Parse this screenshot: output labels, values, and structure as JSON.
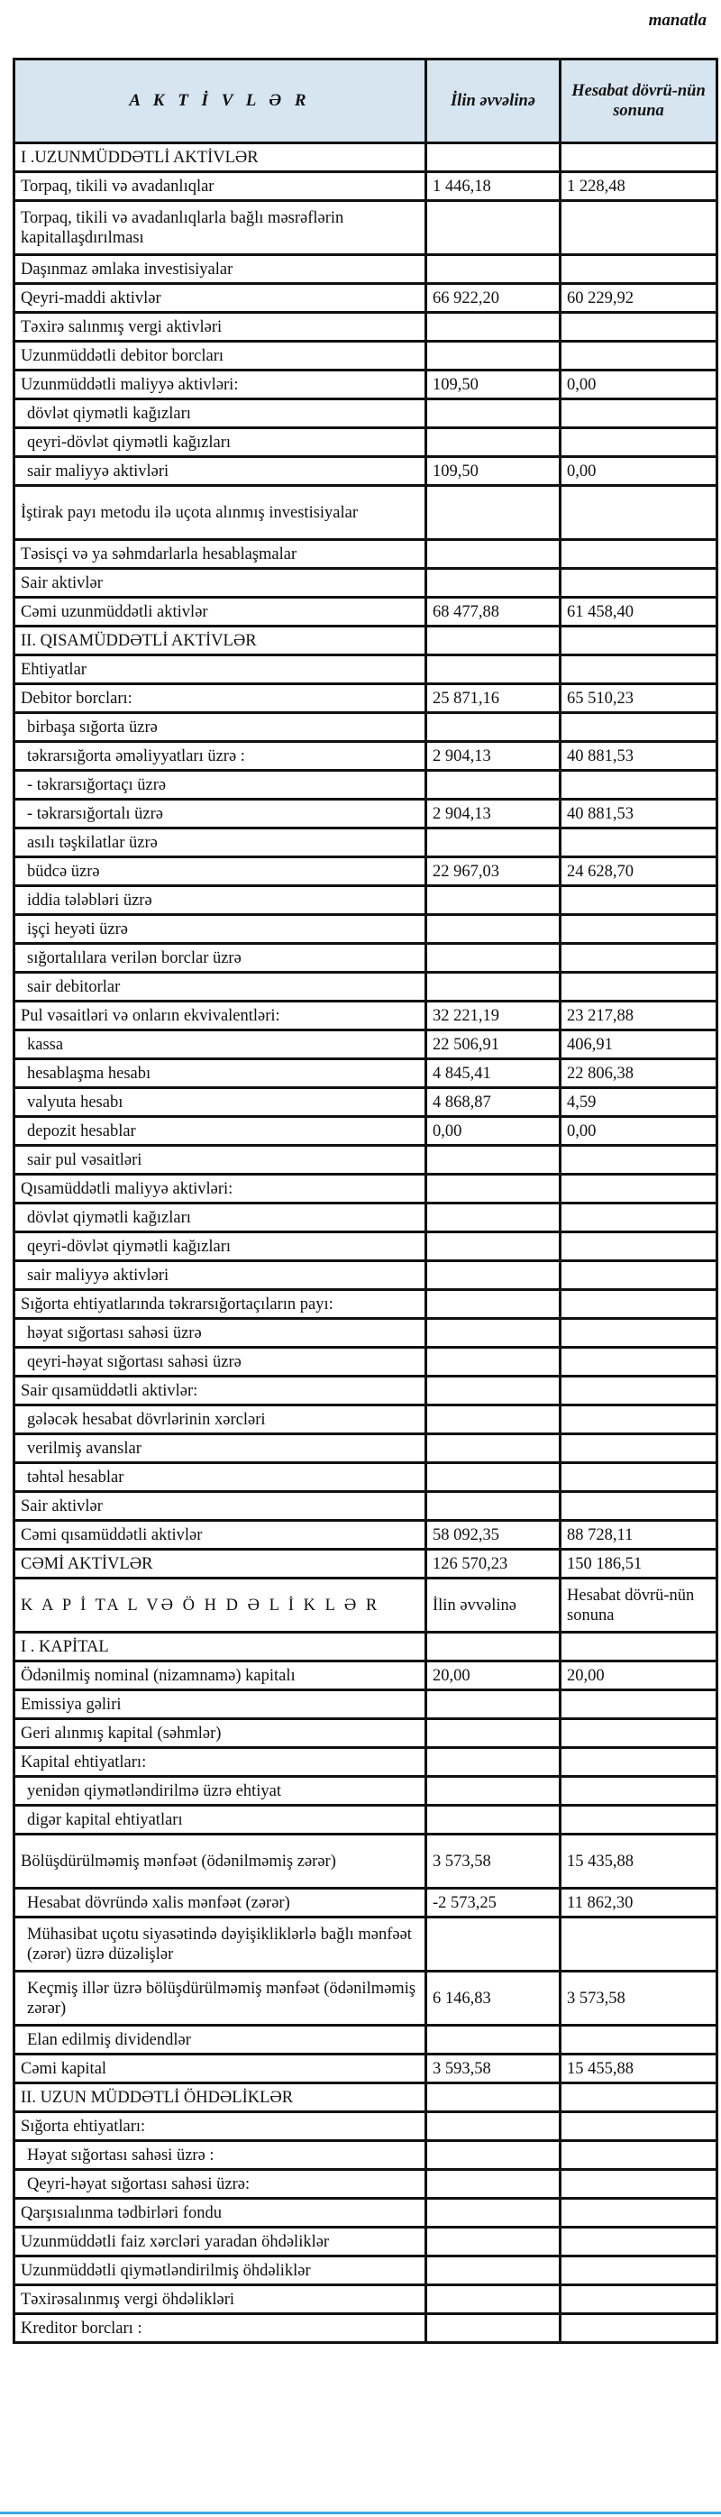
{
  "unit_label": "manatla",
  "header": {
    "title": "A K T İ V L Ə R",
    "col_start": "İlin əvvəlinə",
    "col_end": "Hesabat dövrü-nün sonuna"
  },
  "rows": [
    {
      "label": "I .UZUNMÜDDƏTLİ AKTİVLƏR",
      "start": "",
      "end": ""
    },
    {
      "label": "Torpaq, tikili və avadanlıqlar",
      "start": "1 446,18",
      "end": "1 228,48"
    },
    {
      "label": "Torpaq, tikili və avadanlıqlarla bağlı məsrəflərin kapitallaşdırılması",
      "start": "",
      "end": "",
      "double": true
    },
    {
      "label": "Daşınmaz əmlaka investisiyalar",
      "start": "",
      "end": ""
    },
    {
      "label": "Qeyri-maddi aktivlər",
      "start": "66 922,20",
      "end": "60 229,92"
    },
    {
      "label": "Təxirə salınmış vergi aktivləri",
      "start": "",
      "end": ""
    },
    {
      "label": "Uzunmüddətli debitor borcları",
      "start": "",
      "end": ""
    },
    {
      "label": "Uzunmüddətli maliyyə aktivləri:",
      "start": "109,50",
      "end": "0,00"
    },
    {
      "label": "dövlət qiymətli kağızları",
      "start": "",
      "end": "",
      "indent": true
    },
    {
      "label": "qeyri-dövlət qiymətli kağızları",
      "start": "",
      "end": "",
      "indent": true
    },
    {
      "label": "sair maliyyə aktivləri",
      "start": "109,50",
      "end": "0,00",
      "indent": true
    },
    {
      "label": "İştirak payı metodu ilə uçota alınmış investisiyalar",
      "start": "",
      "end": "",
      "double": true
    },
    {
      "label": "Təsisçi və ya səhmdarlarla hesablaşmalar",
      "start": "",
      "end": ""
    },
    {
      "label": "Sair aktivlər",
      "start": "",
      "end": ""
    },
    {
      "label": "Cəmi uzunmüddətli aktivlər",
      "start": "68 477,88",
      "end": "61 458,40"
    },
    {
      "label": "II. QISAMÜDDƏTLİ AKTİVLƏR",
      "start": "",
      "end": ""
    },
    {
      "label": "Ehtiyatlar",
      "start": "",
      "end": ""
    },
    {
      "label": "Debitor borcları:",
      "start": "25 871,16",
      "end": "65 510,23"
    },
    {
      "label": "birbaşa sığorta üzrə",
      "start": "",
      "end": "",
      "indent": true
    },
    {
      "label": "təkrarsığorta əməliyyatları üzrə :",
      "start": "2 904,13",
      "end": "40 881,53",
      "indent": true
    },
    {
      "label": "- təkrarsığortaçı üzrə",
      "start": "",
      "end": "",
      "indent": true
    },
    {
      "label": "- təkrarsığortalı üzrə",
      "start": "2 904,13",
      "end": "40 881,53",
      "indent": true
    },
    {
      "label": "asılı təşkilatlar üzrə",
      "start": "",
      "end": "",
      "indent": true
    },
    {
      "label": "büdcə üzrə",
      "start": "22 967,03",
      "end": "24 628,70",
      "indent": true
    },
    {
      "label": "iddia tələbləri üzrə",
      "start": "",
      "end": "",
      "indent": true
    },
    {
      "label": "işçi heyəti üzrə",
      "start": "",
      "end": "",
      "indent": true
    },
    {
      "label": "sığortalılara verilən borclar üzrə",
      "start": "",
      "end": "",
      "indent": true
    },
    {
      "label": "sair debitorlar",
      "start": "",
      "end": "",
      "indent": true
    },
    {
      "label": "Pul vəsaitləri və onların ekvivalentləri:",
      "start": "32 221,19",
      "end": "23 217,88"
    },
    {
      "label": "kassa",
      "start": "22 506,91",
      "end": "406,91",
      "indent": true
    },
    {
      "label": "hesablaşma hesabı",
      "start": "4 845,41",
      "end": "22 806,38",
      "indent": true
    },
    {
      "label": "valyuta hesabı",
      "start": "4 868,87",
      "end": "4,59",
      "indent": true
    },
    {
      "label": "depozit hesablar",
      "start": "0,00",
      "end": "0,00",
      "indent": true
    },
    {
      "label": "sair pul vəsaitləri",
      "start": "",
      "end": "",
      "indent": true
    },
    {
      "label": "Qısamüddətli maliyyə aktivləri:",
      "start": "",
      "end": ""
    },
    {
      "label": "dövlət qiymətli kağızları",
      "start": "",
      "end": "",
      "indent": true
    },
    {
      "label": "qeyri-dövlət qiymətli kağızları",
      "start": "",
      "end": "",
      "indent": true
    },
    {
      "label": "sair maliyyə aktivləri",
      "start": "",
      "end": "",
      "indent": true
    },
    {
      "label": "Sığorta ehtiyatlarında təkrarsığortaçıların payı:",
      "start": "",
      "end": ""
    },
    {
      "label": "həyat sığortası sahəsi üzrə",
      "start": "",
      "end": "",
      "indent": true
    },
    {
      "label": "qeyri-həyat sığortası sahəsi üzrə",
      "start": "",
      "end": "",
      "indent": true
    },
    {
      "label": "Sair qısamüddətli aktivlər:",
      "start": "",
      "end": ""
    },
    {
      "label": "gələcək hesabat dövrlərinin xərcləri",
      "start": "",
      "end": "",
      "indent": true
    },
    {
      "label": "verilmiş avanslar",
      "start": "",
      "end": "",
      "indent": true
    },
    {
      "label": "təhtəl hesablar",
      "start": "",
      "end": "",
      "indent": true
    },
    {
      "label": "Sair aktivlər",
      "start": "",
      "end": ""
    },
    {
      "label": "Cəmi qısamüddətli aktivlər",
      "start": "58 092,35",
      "end": "88 728,11"
    },
    {
      "label": "CƏMİ AKTİVLƏR",
      "start": "126 570,23",
      "end": "150 186,51"
    },
    {
      "label": "K A P İ TA L VƏ Ö H D Ə L İ K L Ə R",
      "start": "İlin əvvəlinə",
      "end": "Hesabat dövrü-nün sonuna",
      "subheader": true
    },
    {
      "label": "I . KAPİTAL",
      "start": "",
      "end": ""
    },
    {
      "label": "Ödənilmiş nominal (nizamnamə) kapitalı",
      "start": "20,00",
      "end": "20,00"
    },
    {
      "label": "Emissiya gəliri",
      "start": "",
      "end": ""
    },
    {
      "label": "Geri alınmış kapital (səhmlər)",
      "start": "",
      "end": ""
    },
    {
      "label": "Kapital ehtiyatları:",
      "start": "",
      "end": ""
    },
    {
      "label": "yenidən qiymətləndirilmə üzrə ehtiyat",
      "start": "",
      "end": "",
      "indent": true
    },
    {
      "label": "digər kapital ehtiyatları",
      "start": "",
      "end": "",
      "indent": true
    },
    {
      "label": "Bölüşdürülməmiş mənfəət (ödənilməmiş zərər)",
      "start": "3 573,58",
      "end": "15 435,88",
      "double": true
    },
    {
      "label": "Hesabat dövründə xalis mənfəət (zərər)",
      "start": "-2 573,25",
      "end": "11 862,30",
      "indent": true
    },
    {
      "label": "Mühasibat uçotu siyasətində dəyişikliklərlə bağlı mənfəət (zərər) üzrə düzəlişlər",
      "start": "",
      "end": "",
      "double": true,
      "indent": true
    },
    {
      "label": "Keçmiş illər üzrə bölüşdürülməmiş mənfəət (ödənilməmiş zərər)",
      "start": "6 146,83",
      "end": "3 573,58",
      "double": true,
      "indent": true
    },
    {
      "label": "Elan edilmiş dividendlər",
      "start": "",
      "end": "",
      "indent": true
    },
    {
      "label": "Cəmi kapital",
      "start": "3 593,58",
      "end": "15 455,88"
    },
    {
      "label": "II. UZUN MÜDDƏTLİ ÖHDƏLİKLƏR",
      "start": "",
      "end": ""
    },
    {
      "label": "Sığorta ehtiyatları:",
      "start": "",
      "end": ""
    },
    {
      "label": "Həyat sığortası sahəsi üzrə :",
      "start": "",
      "end": "",
      "indent": true
    },
    {
      "label": "Qeyri-həyat sığortası sahəsi üzrə:",
      "start": "",
      "end": "",
      "indent": true
    },
    {
      "label": "Qarşısıalınma tədbirləri fondu",
      "start": "",
      "end": ""
    },
    {
      "label": "Uzunmüddətli faiz xərcləri yaradan öhdəliklər",
      "start": "",
      "end": ""
    },
    {
      "label": "Uzunmüddətli qiymətləndirilmiş öhdəliklər",
      "start": "",
      "end": ""
    },
    {
      "label": "Təxirəsalınmış vergi öhdəlikləri",
      "start": "",
      "end": ""
    },
    {
      "label": "Kreditor borcları :",
      "start": "",
      "end": ""
    }
  ]
}
